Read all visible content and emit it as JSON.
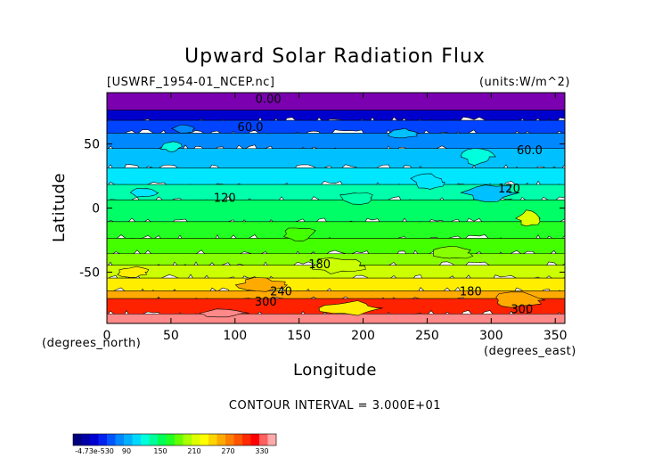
{
  "chart_data": {
    "type": "heatmap",
    "title": "Upward Solar Radiation Flux",
    "file_label": "[USWRF_1954-01_NCEP.nc]",
    "units_label": "(units:W/m^2)",
    "xlabel": "Longitude",
    "ylabel": "Latitude",
    "x_unit_label": "(degrees_east)",
    "y_unit_label": "(degrees_north)",
    "xlim": [
      0,
      357.5
    ],
    "ylim": [
      -90,
      90
    ],
    "x_ticks": [
      {
        "value": 0,
        "label": "0"
      },
      {
        "value": 50,
        "label": "50"
      },
      {
        "value": 100,
        "label": "100"
      },
      {
        "value": 150,
        "label": "150"
      },
      {
        "value": 200,
        "label": "200"
      },
      {
        "value": 250,
        "label": "250"
      },
      {
        "value": 300,
        "label": "300"
      },
      {
        "value": 350,
        "label": "350"
      }
    ],
    "y_ticks": [
      {
        "value": 50,
        "label": "50"
      },
      {
        "value": 0,
        "label": "0"
      },
      {
        "value": -50,
        "label": "-50"
      }
    ],
    "contour_interval_text": "CONTOUR INTERVAL = 3.000E+01",
    "colorbar": {
      "labels": [
        "-4.73e-530",
        "90",
        "150",
        "210",
        "270",
        "330"
      ],
      "colors": [
        "#00007f",
        "#0000a8",
        "#0000d0",
        "#0022ee",
        "#0055ff",
        "#0088ff",
        "#00b0ff",
        "#00d8ff",
        "#00ffdd",
        "#00ff99",
        "#00ff55",
        "#22ff22",
        "#66ff00",
        "#aaff00",
        "#ddff00",
        "#ffff00",
        "#ffd500",
        "#ffaa00",
        "#ff7f00",
        "#ff5500",
        "#ff2a00",
        "#ff0000",
        "#ff6060",
        "#ffaaaa"
      ]
    },
    "contour_labels": [
      {
        "text": "0.00",
        "lon": 126,
        "lat": 82
      },
      {
        "text": "60.0",
        "lon": 112,
        "lat": 60
      },
      {
        "text": "60.0",
        "lon": 330,
        "lat": 42
      },
      {
        "text": "120",
        "lon": 92,
        "lat": 5
      },
      {
        "text": "120",
        "lon": 314,
        "lat": 12
      },
      {
        "text": "180",
        "lon": 166,
        "lat": -47
      },
      {
        "text": "240",
        "lon": 136,
        "lat": -68
      },
      {
        "text": "180",
        "lon": 284,
        "lat": -68
      },
      {
        "text": "300",
        "lon": 124,
        "lat": -76
      },
      {
        "text": "300",
        "lon": 324,
        "lat": -82
      }
    ],
    "bands": [
      {
        "lat_top": 90,
        "lat_bottom": 75,
        "color": "#7a00b0"
      },
      {
        "lat_top": 75,
        "lat_bottom": 67,
        "color": "#0000cc"
      },
      {
        "lat_top": 67,
        "lat_bottom": 57,
        "color": "#0044ff"
      },
      {
        "lat_top": 57,
        "lat_bottom": 45,
        "color": "#0088ff"
      },
      {
        "lat_top": 45,
        "lat_bottom": 30,
        "color": "#00c0ff"
      },
      {
        "lat_top": 30,
        "lat_bottom": 17,
        "color": "#00e6ff"
      },
      {
        "lat_top": 17,
        "lat_bottom": 5,
        "color": "#00ffaa"
      },
      {
        "lat_top": 5,
        "lat_bottom": -12,
        "color": "#00ff66"
      },
      {
        "lat_top": -12,
        "lat_bottom": -25,
        "color": "#22ff22"
      },
      {
        "lat_top": -25,
        "lat_bottom": -37,
        "color": "#44ff00"
      },
      {
        "lat_top": -37,
        "lat_bottom": -46,
        "color": "#88ff00"
      },
      {
        "lat_top": -46,
        "lat_bottom": -56,
        "color": "#ccff00"
      },
      {
        "lat_top": -56,
        "lat_bottom": -66,
        "color": "#ffee00"
      },
      {
        "lat_top": -66,
        "lat_bottom": -72,
        "color": "#ffaa00"
      },
      {
        "lat_top": -72,
        "lat_bottom": -84,
        "color": "#ff2200"
      },
      {
        "lat_top": -84,
        "lat_bottom": -90,
        "color": "#ff8888"
      }
    ],
    "patches": [
      {
        "lon": 250,
        "lat": 20,
        "rlon": 12,
        "rlat": 6,
        "color": "#00e6ff"
      },
      {
        "lon": 300,
        "lat": 12,
        "rlon": 20,
        "rlat": 6,
        "color": "#00c0ff"
      },
      {
        "lon": 330,
        "lat": -8,
        "rlon": 10,
        "rlat": 6,
        "color": "#ddff00"
      },
      {
        "lon": 195,
        "lat": 8,
        "rlon": 14,
        "rlat": 5,
        "color": "#00ffaa"
      },
      {
        "lon": 30,
        "lat": 12,
        "rlon": 10,
        "rlat": 4,
        "color": "#00e6ff"
      },
      {
        "lon": 50,
        "lat": 48,
        "rlon": 8,
        "rlat": 4,
        "color": "#00ffdd"
      },
      {
        "lon": 290,
        "lat": 40,
        "rlon": 12,
        "rlat": 6,
        "color": "#00ffdd"
      },
      {
        "lon": 230,
        "lat": 58,
        "rlon": 12,
        "rlat": 4,
        "color": "#00c0ff"
      },
      {
        "lon": 60,
        "lat": 62,
        "rlon": 10,
        "rlat": 3,
        "color": "#0088ff"
      },
      {
        "lon": 180,
        "lat": -45,
        "rlon": 22,
        "rlat": 6,
        "color": "#ccff00"
      },
      {
        "lon": 120,
        "lat": -60,
        "rlon": 18,
        "rlat": 5,
        "color": "#ffaa00"
      },
      {
        "lon": 190,
        "lat": -78,
        "rlon": 22,
        "rlat": 5,
        "color": "#ffee00"
      },
      {
        "lon": 320,
        "lat": -72,
        "rlon": 20,
        "rlat": 6,
        "color": "#ffaa00"
      },
      {
        "lon": 90,
        "lat": -82,
        "rlon": 18,
        "rlat": 3,
        "color": "#ff8888"
      },
      {
        "lon": 150,
        "lat": -20,
        "rlon": 12,
        "rlat": 5,
        "color": "#44ff00"
      },
      {
        "lon": 270,
        "lat": -35,
        "rlon": 15,
        "rlat": 5,
        "color": "#88ff00"
      },
      {
        "lon": 20,
        "lat": -50,
        "rlon": 12,
        "rlat": 4,
        "color": "#ffee00"
      }
    ]
  }
}
